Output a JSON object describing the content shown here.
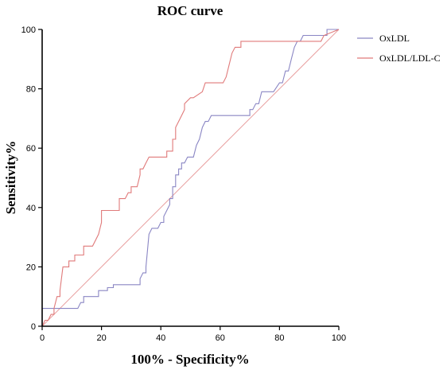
{
  "chart_data": {
    "type": "line",
    "title": "ROC curve",
    "xlabel": "100% - Specificity%",
    "ylabel": "Sensitivity%",
    "xlim": [
      0,
      100
    ],
    "ylim": [
      0,
      100
    ],
    "xticks": [
      "0",
      "20",
      "40",
      "60",
      "80",
      "100"
    ],
    "yticks": [
      "0",
      "20",
      "40",
      "60",
      "80",
      "100"
    ],
    "grid": false,
    "legend_position": "top-right",
    "reference_line": {
      "x": [
        0,
        100
      ],
      "y": [
        0,
        100
      ],
      "color": "#e9a0a0"
    },
    "series": [
      {
        "name": "OxLDL",
        "color": "#8a86c4",
        "x": [
          0,
          0,
          1,
          12,
          13,
          14,
          14,
          16,
          19,
          19,
          22,
          22,
          24,
          24,
          31,
          33,
          33,
          34,
          35,
          35,
          36,
          37,
          38,
          39,
          40,
          41,
          41,
          42,
          43,
          43,
          44,
          44,
          45,
          45,
          46,
          46,
          47,
          47,
          48,
          49,
          51,
          52,
          53,
          54,
          55,
          56,
          57,
          62,
          67,
          70,
          70,
          71,
          72,
          73,
          74,
          78,
          80,
          81,
          82,
          83,
          84,
          85,
          86,
          87,
          88,
          94,
          96,
          96,
          97,
          100
        ],
        "y": [
          0,
          6,
          6,
          6,
          8,
          8,
          10,
          10,
          10,
          12,
          12,
          13,
          13,
          14,
          14,
          14,
          16,
          18,
          18,
          20,
          31,
          33,
          33,
          33,
          35,
          35,
          37,
          39,
          41,
          43,
          43,
          47,
          47,
          51,
          51,
          53,
          53,
          55,
          55,
          57,
          57,
          61,
          63,
          67,
          69,
          69,
          71,
          71,
          71,
          71,
          73,
          73,
          75,
          75,
          79,
          79,
          82,
          82,
          86,
          86,
          90,
          94,
          96,
          96,
          98,
          98,
          98,
          100,
          100,
          100
        ]
      },
      {
        "name": "OxLDL/LDL-C",
        "color": "#e07a7a",
        "x": [
          0,
          1,
          2,
          3,
          4,
          4,
          5,
          6,
          6,
          7,
          9,
          9,
          11,
          11,
          14,
          14,
          17,
          19,
          20,
          20,
          21,
          22,
          26,
          26,
          28,
          29,
          30,
          30,
          32,
          33,
          33,
          34,
          35,
          35,
          36,
          37,
          37,
          38,
          42,
          42,
          44,
          44,
          45,
          45,
          46,
          47,
          48,
          48,
          50,
          51,
          54,
          55,
          57,
          61,
          62,
          63,
          64,
          65,
          67,
          67,
          70,
          73,
          85,
          87,
          94,
          95,
          100
        ],
        "y": [
          0,
          2,
          2,
          4,
          4,
          6,
          10,
          10,
          12,
          20,
          20,
          22,
          22,
          24,
          24,
          27,
          27,
          31,
          35,
          39,
          39,
          39,
          39,
          43,
          43,
          45,
          45,
          47,
          47,
          51,
          53,
          53,
          55,
          55,
          57,
          57,
          57,
          57,
          57,
          59,
          59,
          63,
          63,
          67,
          69,
          71,
          73,
          75,
          77,
          77,
          79,
          82,
          82,
          82,
          84,
          88,
          92,
          94,
          94,
          96,
          96,
          96,
          96,
          96,
          96,
          98,
          100
        ]
      }
    ]
  }
}
